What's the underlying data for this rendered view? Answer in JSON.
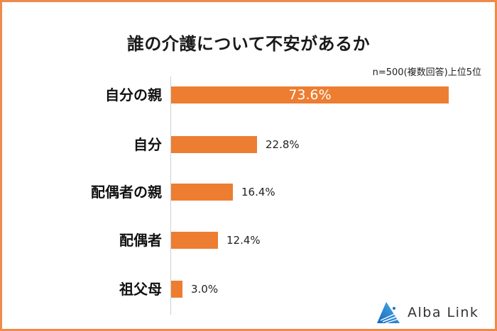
{
  "title": "誰の介護について不安があるか",
  "note": "n=500(複数回答)上位5位",
  "brand": {
    "name": "Alba Link",
    "icon": "triangle-logo-icon",
    "color": "#1e73be"
  },
  "colors": {
    "bar": "#ed7d31",
    "border": "#ee8a4a"
  },
  "chart_data": {
    "type": "bar",
    "orientation": "horizontal",
    "title": "誰の介護について不安があるか",
    "subtitle": "n=500(複数回答)上位5位",
    "categories": [
      "自分の親",
      "自分",
      "配偶者の親",
      "配偶者",
      "祖父母"
    ],
    "values": [
      73.6,
      22.8,
      16.4,
      12.4,
      3.0
    ],
    "labels": [
      "73.6%",
      "22.8%",
      "16.4%",
      "12.4%",
      "3.0%"
    ],
    "unit": "%",
    "xlabel": "",
    "ylabel": "",
    "xlim": [
      0,
      80
    ],
    "grid": false,
    "legend": "none"
  }
}
